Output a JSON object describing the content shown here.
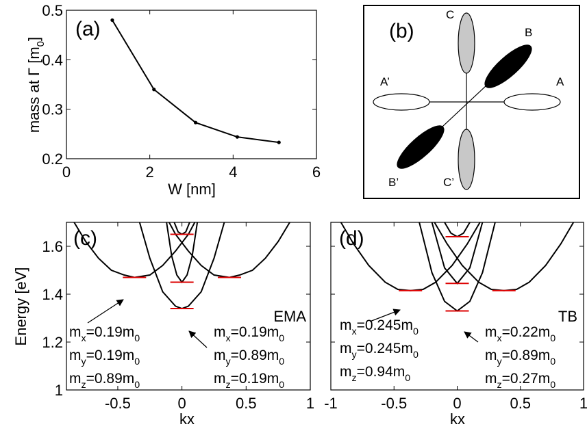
{
  "chart_data": [
    {
      "type": "line",
      "panel_label": "(a)",
      "xlabel": "W [nm]",
      "ylabel": [
        {
          "text": "mass at Γ [m"
        },
        {
          "sub": "0"
        },
        {
          "text": "]"
        }
      ],
      "x": [
        1.1,
        2.1,
        3.1,
        4.1,
        5.1
      ],
      "series": [
        {
          "color": "#000000",
          "values": [
            0.48,
            0.34,
            0.273,
            0.244,
            0.233
          ]
        }
      ],
      "markers": true,
      "xlim": [
        0,
        6
      ],
      "xticks": [
        0,
        2,
        4,
        6
      ],
      "ylim": [
        0.2,
        0.5
      ],
      "yticks": [
        0.2,
        0.3,
        0.4,
        0.5
      ]
    },
    {
      "type": "line",
      "panel_label": "(c)",
      "label": "EMA",
      "xlabel": "kx",
      "ylabel": "Energy [eV]",
      "series": [
        {
          "color": "#000000",
          "x": [
            -0.84,
            -0.75,
            -0.65,
            -0.55,
            -0.45,
            -0.37,
            -0.25,
            -0.15,
            -0.05,
            0.05,
            0.1
          ],
          "values": [
            1.7,
            1.62,
            1.55,
            1.5,
            1.48,
            1.47,
            1.48,
            1.52,
            1.58,
            1.65,
            1.7
          ]
        },
        {
          "color": "#000000",
          "x": [
            -0.1,
            -0.05,
            0.05,
            0.15,
            0.25,
            0.37,
            0.45,
            0.55,
            0.65,
            0.75,
            0.84
          ],
          "values": [
            1.7,
            1.65,
            1.58,
            1.52,
            1.48,
            1.47,
            1.48,
            1.5,
            1.55,
            1.62,
            1.7
          ]
        },
        {
          "color": "#000000",
          "x": [
            -0.33,
            -0.25,
            -0.15,
            -0.05,
            0,
            0.05,
            0.15,
            0.25,
            0.33
          ],
          "values": [
            1.7,
            1.55,
            1.41,
            1.35,
            1.34,
            1.35,
            1.41,
            1.55,
            1.7
          ]
        },
        {
          "color": "#000000",
          "x": [
            -0.12,
            -0.08,
            -0.04,
            0,
            0.04,
            0.08,
            0.12
          ],
          "values": [
            1.7,
            1.56,
            1.48,
            1.45,
            1.48,
            1.56,
            1.7
          ]
        },
        {
          "color": "#000000",
          "x": [
            -0.06,
            -0.03,
            0,
            0.03,
            0.06
          ],
          "values": [
            1.7,
            1.66,
            1.65,
            1.66,
            1.7
          ]
        }
      ],
      "levels": {
        "color": "#dd0000",
        "x": [
          -0.37,
          0.37,
          0,
          0,
          0
        ],
        "values": [
          1.47,
          1.47,
          1.34,
          1.45,
          1.65
        ]
      },
      "annotations": [
        {
          "lines": [
            [
              {
                "text": "m"
              },
              {
                "sub": "x"
              },
              {
                "text": "=0.19m"
              },
              {
                "sub": "0"
              }
            ],
            [
              {
                "text": "m"
              },
              {
                "sub": "y"
              },
              {
                "text": "=0.19m"
              },
              {
                "sub": "0"
              }
            ],
            [
              {
                "text": "m"
              },
              {
                "sub": "z"
              },
              {
                "text": "=0.89m"
              },
              {
                "sub": "0"
              }
            ]
          ]
        },
        {
          "lines": [
            [
              {
                "text": "m"
              },
              {
                "sub": "x"
              },
              {
                "text": "=0.19m"
              },
              {
                "sub": "0"
              }
            ],
            [
              {
                "text": "m"
              },
              {
                "sub": "y"
              },
              {
                "text": "=0.89m"
              },
              {
                "sub": "0"
              }
            ],
            [
              {
                "text": "m"
              },
              {
                "sub": "z"
              },
              {
                "text": "=0.19m"
              },
              {
                "sub": "0"
              }
            ]
          ]
        }
      ],
      "xlim": [
        -0.9,
        1
      ],
      "xticks": [
        -0.5,
        0,
        0.5,
        1
      ],
      "ylim": [
        1,
        1.7
      ],
      "yticks": [
        1,
        1.2,
        1.4,
        1.6
      ]
    },
    {
      "type": "line",
      "panel_label": "(d)",
      "label": "TB",
      "xlabel": "kx",
      "series": [
        {
          "color": "#000000",
          "x": [
            -0.92,
            -0.82,
            -0.7,
            -0.57,
            -0.47,
            -0.37,
            -0.27,
            -0.17,
            -0.04,
            0.08,
            0.18
          ],
          "values": [
            1.7,
            1.61,
            1.52,
            1.45,
            1.42,
            1.415,
            1.42,
            1.45,
            1.52,
            1.61,
            1.7
          ]
        },
        {
          "color": "#000000",
          "x": [
            -0.18,
            -0.08,
            0.04,
            0.17,
            0.27,
            0.37,
            0.47,
            0.57,
            0.7,
            0.82,
            0.92
          ],
          "values": [
            1.7,
            1.61,
            1.52,
            1.45,
            1.42,
            1.415,
            1.42,
            1.45,
            1.52,
            1.61,
            1.7
          ]
        },
        {
          "color": "#000000",
          "x": [
            -0.3,
            -0.2,
            -0.1,
            0,
            0.1,
            0.2,
            0.3
          ],
          "values": [
            1.7,
            1.49,
            1.37,
            1.33,
            1.37,
            1.49,
            1.7
          ]
        },
        {
          "color": "#000000",
          "x": [
            -0.2,
            -0.1,
            0,
            0.1,
            0.2
          ],
          "values": [
            1.7,
            1.51,
            1.445,
            1.51,
            1.7
          ]
        },
        {
          "color": "#000000",
          "x": [
            -0.1,
            -0.05,
            0,
            0.05,
            0.1
          ],
          "values": [
            1.7,
            1.655,
            1.64,
            1.655,
            1.7
          ]
        }
      ],
      "levels": {
        "color": "#dd0000",
        "x": [
          -0.37,
          0.37,
          0,
          0,
          0
        ],
        "values": [
          1.415,
          1.415,
          1.33,
          1.445,
          1.64
        ]
      },
      "annotations": [
        {
          "lines": [
            [
              {
                "text": "m"
              },
              {
                "sub": "x"
              },
              {
                "text": "=0.245m"
              },
              {
                "sub": "0"
              }
            ],
            [
              {
                "text": "m"
              },
              {
                "sub": "y"
              },
              {
                "text": "=0.245m"
              },
              {
                "sub": "0"
              }
            ],
            [
              {
                "text": "m"
              },
              {
                "sub": "z"
              },
              {
                "text": "=0.94m"
              },
              {
                "sub": "0"
              }
            ]
          ]
        },
        {
          "lines": [
            [
              {
                "text": "m"
              },
              {
                "sub": "x"
              },
              {
                "text": "=0.22m"
              },
              {
                "sub": "0"
              }
            ],
            [
              {
                "text": "m"
              },
              {
                "sub": "y"
              },
              {
                "text": "=0.89m"
              },
              {
                "sub": "0"
              }
            ],
            [
              {
                "text": "m"
              },
              {
                "sub": "z"
              },
              {
                "text": "=0.27m"
              },
              {
                "sub": "0"
              }
            ]
          ]
        }
      ],
      "show_ytick_labels": false,
      "xlim": [
        -1,
        1
      ],
      "xticks": [
        -1,
        -0.5,
        0,
        0.5,
        1
      ],
      "ylim": [
        1,
        1.7
      ],
      "yticks": [
        1,
        1.2,
        1.4,
        1.6
      ]
    }
  ],
  "diagram": {
    "panel_label": "(b)",
    "labels": [
      "A",
      "A’",
      "B",
      "B’",
      "C",
      "C’"
    ]
  }
}
